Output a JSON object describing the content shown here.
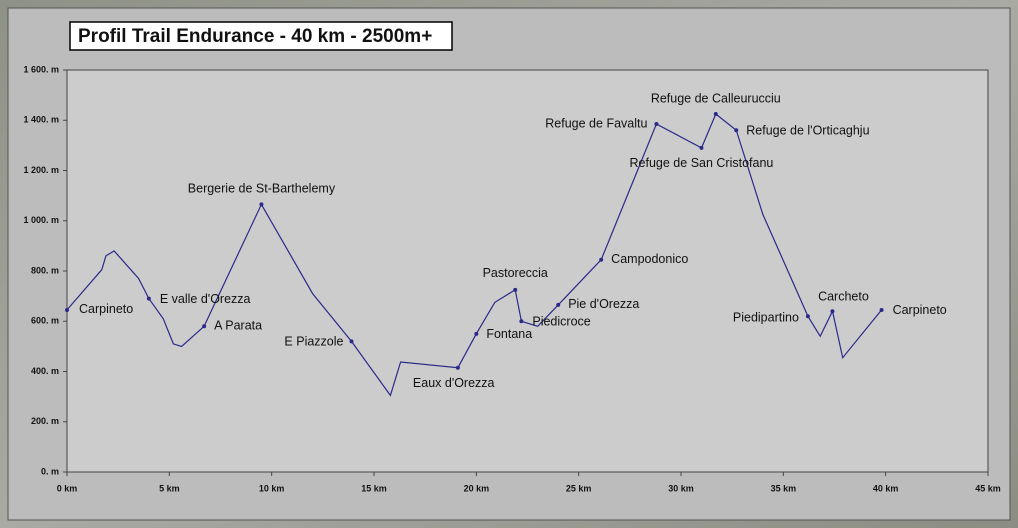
{
  "chart_data": {
    "type": "line",
    "title": "Profil Trail Endurance - 40 km - 2500m+",
    "x": [
      0,
      1.7,
      1.9,
      2.3,
      3.5,
      4.0,
      4.7,
      5.2,
      5.6,
      6.7,
      9.5,
      12.0,
      13.9,
      15.8,
      16.3,
      19.1,
      20.0,
      20.9,
      21.9,
      22.2,
      23.0,
      24.0,
      26.1,
      28.8,
      31.0,
      31.7,
      32.7,
      34.0,
      36.2,
      36.8,
      37.4,
      37.9,
      39.8
    ],
    "values": [
      645,
      805,
      860,
      880,
      770,
      690,
      610,
      510,
      500,
      580,
      1065,
      710,
      520,
      305,
      438,
      415,
      550,
      675,
      725,
      600,
      580,
      665,
      845,
      1385,
      1290,
      1425,
      1360,
      1025,
      620,
      540,
      640,
      455,
      645
    ],
    "point_labels": [
      "Carpineto",
      null,
      null,
      null,
      null,
      "E valle d'Orezza",
      null,
      null,
      null,
      "A Parata",
      "Bergerie de St-Barthelemy",
      null,
      "E Piazzole",
      null,
      null,
      "Eaux d'Orezza",
      "Fontana",
      null,
      "Pastoreccia",
      "Piedicroce",
      null,
      "Pie d'Orezza",
      "Campodonico",
      "Refuge de Favaltu",
      "Refuge de San Cristofanu",
      "Refuge de Calleurucciu",
      "Refuge de l'Orticaghju",
      null,
      "Piedipartino",
      null,
      "Carcheto",
      null,
      "Carpineto"
    ],
    "color": "#2a2a8a",
    "xlim": [
      0,
      45
    ],
    "ylim": [
      0,
      1600
    ],
    "xticks": [
      {
        "value": 0,
        "label": "0 km"
      },
      {
        "value": 5,
        "label": "5 km"
      },
      {
        "value": 10,
        "label": "10 km"
      },
      {
        "value": 15,
        "label": "15 km"
      },
      {
        "value": 20,
        "label": "20 km"
      },
      {
        "value": 25,
        "label": "25 km"
      },
      {
        "value": 30,
        "label": "30 km"
      },
      {
        "value": 35,
        "label": "35 km"
      },
      {
        "value": 40,
        "label": "40 km"
      },
      {
        "value": 45,
        "label": "45 km"
      }
    ],
    "yticks": [
      {
        "value": 0,
        "label": "0. m"
      },
      {
        "value": 200,
        "label": "200. m"
      },
      {
        "value": 400,
        "label": "400. m"
      },
      {
        "value": 600,
        "label": "600. m"
      },
      {
        "value": 800,
        "label": "800. m"
      },
      {
        "value": 1000,
        "label": "1 000. m"
      },
      {
        "value": 1200,
        "label": "1 200. m"
      },
      {
        "value": 1400,
        "label": "1 400. m"
      },
      {
        "value": 1600,
        "label": "1 600. m"
      }
    ],
    "grid": false
  }
}
